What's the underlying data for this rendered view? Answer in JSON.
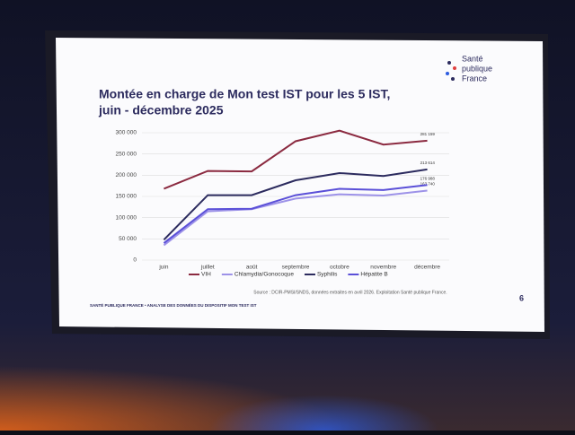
{
  "chart_data": {
    "type": "line",
    "title": [
      "Montée en charge de Mon test IST pour les 5 IST,",
      "juin - décembre 2025"
    ],
    "categories": [
      "juin",
      "juillet",
      "août",
      "septembre",
      "octobre",
      "novembre",
      "décembre"
    ],
    "series": [
      {
        "name": "VIH",
        "color": "#8b2a40",
        "values": [
          168000,
          210000,
          209000,
          280000,
          305000,
          272000,
          281159
        ],
        "value_labels": [
          null,
          null,
          null,
          null,
          null,
          null,
          "281 159"
        ]
      },
      {
        "name": "Chlamydia/Gonocoque",
        "color": "#9d92e8",
        "values": [
          35000,
          115000,
          120000,
          145000,
          155000,
          152000,
          163740
        ],
        "value_labels": [
          null,
          null,
          null,
          null,
          null,
          null,
          "163 740"
        ]
      },
      {
        "name": "Syphilis",
        "color": "#2c2b5e",
        "values": [
          48000,
          153000,
          153000,
          188000,
          205000,
          198000,
          213614
        ],
        "value_labels": [
          null,
          null,
          null,
          null,
          null,
          null,
          "213 614"
        ]
      },
      {
        "name": "Hépatite B",
        "color": "#5b50d8",
        "values": [
          40000,
          120000,
          121000,
          153000,
          168000,
          165000,
          176988
        ],
        "value_labels": [
          null,
          null,
          null,
          null,
          null,
          null,
          "176 988"
        ]
      }
    ],
    "ylim": [
      0,
      300000
    ],
    "yticks": [
      {
        "value": 0,
        "label": "0"
      },
      {
        "value": 50000,
        "label": "50 000"
      },
      {
        "value": 100000,
        "label": "100 000"
      },
      {
        "value": 150000,
        "label": "150 000"
      },
      {
        "value": 200000,
        "label": "200 000"
      },
      {
        "value": 250000,
        "label": "250 000"
      },
      {
        "value": 300000,
        "label": "300 000"
      }
    ],
    "grid": true
  },
  "slide": {
    "logo": [
      "Santé",
      "publique",
      "France"
    ],
    "source": "Source : DCIR-PMSI/SNDS, données extraites en avril 2026. Exploitation Santé publique France.",
    "footer": "SANTÉ PUBLIQUE FRANCE • ANALYSE DES DONNÉES DU DISPOSITIF MON TEST IST",
    "page": "6"
  }
}
